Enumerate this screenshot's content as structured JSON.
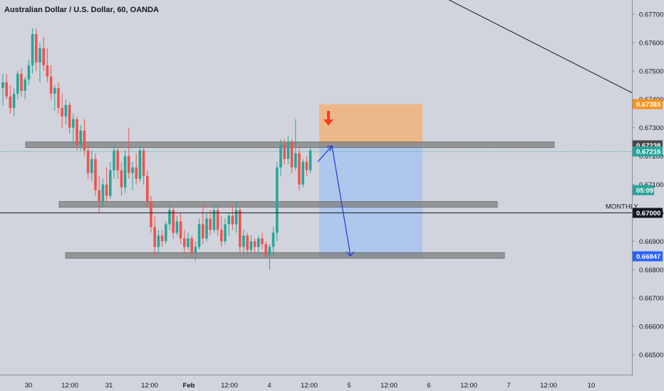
{
  "header": {
    "title": "Australian Dollar / U.S. Dollar, 60, OANDA"
  },
  "colors": {
    "background": "#d1d4dc",
    "up": "#26a69a",
    "down": "#ef5350",
    "zone": "#808080",
    "stop_zone": "#f2b37a",
    "target_zone": "#a9c4ef",
    "projection": "#1e3adb",
    "signal_arrow": "#ff3b1f"
  },
  "chart_data": {
    "type": "candlestick",
    "symbol": "AUDUSD",
    "timeframe": "60",
    "x_tick_labels": [
      "30",
      "12:00",
      "31",
      "12:00",
      "Feb",
      "12:00",
      "4",
      "12:00",
      "5",
      "12:00",
      "6",
      "12:00",
      "7",
      "12:00",
      "10"
    ],
    "y_tick_labels": [
      "0.67700",
      "0.67600",
      "0.67500",
      "0.67400",
      "0.67300",
      "0.67200",
      "0.67100",
      "0.67000",
      "0.66900",
      "0.66800",
      "0.66700",
      "0.66600",
      "0.66500"
    ],
    "y_ticks": [
      0.677,
      0.676,
      0.675,
      0.674,
      0.673,
      0.672,
      0.671,
      0.67,
      0.669,
      0.668,
      0.667,
      0.666,
      0.665
    ],
    "ylim": [
      0.6643,
      0.6775
    ],
    "price_tags": [
      {
        "label": "0.67383",
        "value": 0.67383,
        "color": "#f7931a"
      },
      {
        "label": "0.67238",
        "value": 0.67238,
        "color": "#4a4a4a"
      },
      {
        "label": "0.67216",
        "value": 0.67216,
        "color": "#26a69a"
      },
      {
        "label": "05:09",
        "value": 0.6708,
        "color": "#26a69a"
      },
      {
        "label": "0.67000",
        "value": 0.67,
        "color": "#131722"
      },
      {
        "label": "0.66847",
        "value": 0.66847,
        "color": "#2962ff"
      }
    ],
    "monthly_level": {
      "label": "MONTHLY",
      "value": 0.67
    },
    "zones": [
      {
        "from": 0.6725,
        "to": 0.6723
      },
      {
        "from": 0.6704,
        "to": 0.6702
      },
      {
        "from": 0.6686,
        "to": 0.6684
      }
    ],
    "trendline": {
      "from": 0.67785,
      "to": 0.67422
    },
    "position": {
      "entry": 0.67238,
      "stop": 0.67383,
      "target": 0.66847
    },
    "projection_path": [
      0.6718,
      0.67236,
      0.66848
    ],
    "candles": [
      [
        0.6744,
        0.6749,
        0.6738,
        0.6746
      ],
      [
        0.6746,
        0.6749,
        0.674,
        0.6741
      ],
      [
        0.6741,
        0.6745,
        0.6735,
        0.6737
      ],
      [
        0.6737,
        0.6744,
        0.6734,
        0.6742
      ],
      [
        0.6742,
        0.675,
        0.674,
        0.6749
      ],
      [
        0.6749,
        0.6751,
        0.6741,
        0.6743
      ],
      [
        0.6743,
        0.6748,
        0.674,
        0.6747
      ],
      [
        0.6747,
        0.6754,
        0.6745,
        0.6752
      ],
      [
        0.6752,
        0.6765,
        0.6749,
        0.6763
      ],
      [
        0.6763,
        0.6765,
        0.675,
        0.6753
      ],
      [
        0.6753,
        0.676,
        0.6746,
        0.6758
      ],
      [
        0.6758,
        0.6762,
        0.675,
        0.6752
      ],
      [
        0.6752,
        0.6758,
        0.6746,
        0.6748
      ],
      [
        0.6748,
        0.6752,
        0.674,
        0.6742
      ],
      [
        0.6742,
        0.6745,
        0.6736,
        0.6744
      ],
      [
        0.6744,
        0.6746,
        0.6735,
        0.6737
      ],
      [
        0.6737,
        0.6742,
        0.673,
        0.6734
      ],
      [
        0.6734,
        0.674,
        0.6731,
        0.6738
      ],
      [
        0.6738,
        0.6739,
        0.6728,
        0.673
      ],
      [
        0.673,
        0.6735,
        0.6724,
        0.6733
      ],
      [
        0.6733,
        0.6734,
        0.6722,
        0.6724
      ],
      [
        0.6724,
        0.6731,
        0.6722,
        0.6729
      ],
      [
        0.6729,
        0.6733,
        0.672,
        0.6722
      ],
      [
        0.6722,
        0.6724,
        0.6712,
        0.6714
      ],
      [
        0.6714,
        0.6722,
        0.6711,
        0.6719
      ],
      [
        0.6719,
        0.6721,
        0.6706,
        0.6708
      ],
      [
        0.6708,
        0.6713,
        0.67,
        0.6704
      ],
      [
        0.6704,
        0.6712,
        0.6702,
        0.671
      ],
      [
        0.671,
        0.6716,
        0.6704,
        0.6706
      ],
      [
        0.6706,
        0.6718,
        0.6705,
        0.6715
      ],
      [
        0.6715,
        0.6724,
        0.6712,
        0.6722
      ],
      [
        0.6722,
        0.6723,
        0.6712,
        0.6715
      ],
      [
        0.6715,
        0.6718,
        0.6706,
        0.6709
      ],
      [
        0.6709,
        0.6722,
        0.6707,
        0.672
      ],
      [
        0.672,
        0.673,
        0.6712,
        0.6714
      ],
      [
        0.6714,
        0.6718,
        0.6708,
        0.6716
      ],
      [
        0.6716,
        0.6721,
        0.671,
        0.6712
      ],
      [
        0.6712,
        0.6724,
        0.6711,
        0.6722
      ],
      [
        0.6722,
        0.6723,
        0.671,
        0.6713
      ],
      [
        0.6713,
        0.6715,
        0.6702,
        0.6704
      ],
      [
        0.6704,
        0.6706,
        0.6693,
        0.6695
      ],
      [
        0.6695,
        0.6699,
        0.6685,
        0.6688
      ],
      [
        0.6688,
        0.6694,
        0.6686,
        0.6692
      ],
      [
        0.6692,
        0.6694,
        0.6688,
        0.669
      ],
      [
        0.669,
        0.6697,
        0.6689,
        0.6696
      ],
      [
        0.6696,
        0.6703,
        0.6694,
        0.6701
      ],
      [
        0.6701,
        0.6702,
        0.6691,
        0.6693
      ],
      [
        0.6693,
        0.6699,
        0.6692,
        0.6697
      ],
      [
        0.6697,
        0.67,
        0.6689,
        0.6691
      ],
      [
        0.6691,
        0.6694,
        0.6686,
        0.6688
      ],
      [
        0.6688,
        0.6693,
        0.6687,
        0.6691
      ],
      [
        0.6691,
        0.6692,
        0.6684,
        0.6686
      ],
      [
        0.6686,
        0.669,
        0.6683,
        0.6688
      ],
      [
        0.6688,
        0.6698,
        0.6687,
        0.6696
      ],
      [
        0.6696,
        0.6703,
        0.6689,
        0.6691
      ],
      [
        0.6691,
        0.67,
        0.669,
        0.6698
      ],
      [
        0.6698,
        0.6701,
        0.6692,
        0.6694
      ],
      [
        0.6694,
        0.6703,
        0.6693,
        0.6701
      ],
      [
        0.6701,
        0.6703,
        0.6692,
        0.6694
      ],
      [
        0.6694,
        0.6699,
        0.6688,
        0.669
      ],
      [
        0.669,
        0.6698,
        0.6689,
        0.6696
      ],
      [
        0.6696,
        0.67,
        0.6692,
        0.6699
      ],
      [
        0.6699,
        0.6703,
        0.6694,
        0.6696
      ],
      [
        0.6696,
        0.6704,
        0.6693,
        0.6701
      ],
      [
        0.6701,
        0.6702,
        0.6686,
        0.6688
      ],
      [
        0.6688,
        0.6694,
        0.6685,
        0.6692
      ],
      [
        0.6692,
        0.6693,
        0.6685,
        0.6687
      ],
      [
        0.6687,
        0.6692,
        0.6686,
        0.669
      ],
      [
        0.669,
        0.6691,
        0.6686,
        0.6688
      ],
      [
        0.6688,
        0.6692,
        0.6686,
        0.6691
      ],
      [
        0.6691,
        0.6693,
        0.6687,
        0.6689
      ],
      [
        0.6689,
        0.669,
        0.6684,
        0.6685
      ],
      [
        0.6685,
        0.6689,
        0.668,
        0.6688
      ],
      [
        0.6688,
        0.6695,
        0.6685,
        0.6693
      ],
      [
        0.6693,
        0.6718,
        0.669,
        0.6716
      ],
      [
        0.6716,
        0.6726,
        0.6713,
        0.6724
      ],
      [
        0.6724,
        0.6726,
        0.6717,
        0.6719
      ],
      [
        0.6719,
        0.6727,
        0.6717,
        0.6725
      ],
      [
        0.6725,
        0.6726,
        0.6714,
        0.6716
      ],
      [
        0.6716,
        0.6733,
        0.6715,
        0.6721
      ],
      [
        0.6721,
        0.6723,
        0.6708,
        0.671
      ],
      [
        0.671,
        0.6719,
        0.6709,
        0.6718
      ],
      [
        0.6718,
        0.672,
        0.6713,
        0.6715
      ],
      [
        0.6715,
        0.6723,
        0.6714,
        0.6722
      ]
    ]
  }
}
